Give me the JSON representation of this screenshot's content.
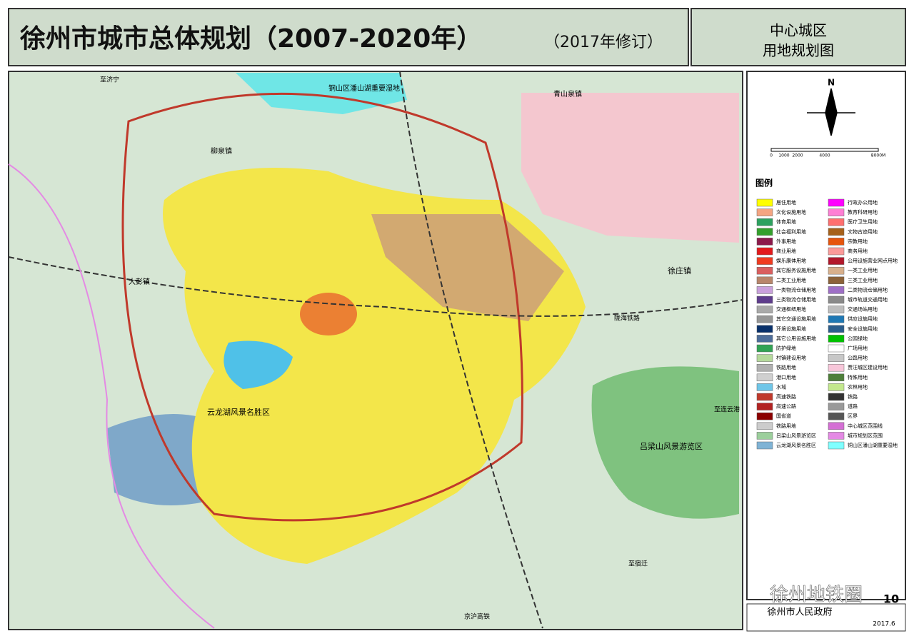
{
  "header": {
    "title": "徐州市城市总体规划（2007-2020年）",
    "subtitle": "（2017年修订）"
  },
  "side_title": [
    "中心城区",
    "用地规划图"
  ],
  "north": "N",
  "scale": [
    "0",
    "1000",
    "2000",
    "4000",
    "8000M"
  ],
  "legend": {
    "title": "图例",
    "items": [
      {
        "label": "居住用地",
        "color": "#ffff00"
      },
      {
        "label": "行政办公用地",
        "color": "#ff00ff"
      },
      {
        "label": "文化设施用地",
        "color": "#f4a582"
      },
      {
        "label": "教育科研用地",
        "color": "#ff7fd4"
      },
      {
        "label": "体育用地",
        "color": "#2ca25f"
      },
      {
        "label": "医疗卫生用地",
        "color": "#ff6f6f"
      },
      {
        "label": "社会福利用地",
        "color": "#33a02c"
      },
      {
        "label": "文物古迹用地",
        "color": "#a6611a"
      },
      {
        "label": "外事用地",
        "color": "#8c1a4b"
      },
      {
        "label": "宗教用地",
        "color": "#e6550d"
      },
      {
        "label": "商业用地",
        "color": "#e31a1c"
      },
      {
        "label": "商务用地",
        "color": "#fb9a99"
      },
      {
        "label": "娱乐康体用地",
        "color": "#f03b20"
      },
      {
        "label": "公用设施营业网点用地",
        "color": "#b2182b"
      },
      {
        "label": "其它服务设施用地",
        "color": "#d95f5f"
      },
      {
        "label": "一类工业用地",
        "color": "#d8b08c"
      },
      {
        "label": "二类工业用地",
        "color": "#b8866b"
      },
      {
        "label": "三类工业用地",
        "color": "#8c6239"
      },
      {
        "label": "一类物流仓储用地",
        "color": "#c9a0dc"
      },
      {
        "label": "二类物流仓储用地",
        "color": "#9e6fc6"
      },
      {
        "label": "三类物流仓储用地",
        "color": "#5e3c8c"
      },
      {
        "label": "城市轨道交通用地",
        "color": "#8a8a8a"
      },
      {
        "label": "交通枢纽用地",
        "color": "#a9a9a9"
      },
      {
        "label": "交通场站用地",
        "color": "#bdbdbd"
      },
      {
        "label": "其它交通设施用地",
        "color": "#969696"
      },
      {
        "label": "供应设施用地",
        "color": "#1f78b4"
      },
      {
        "label": "环境设施用地",
        "color": "#08306b"
      },
      {
        "label": "安全设施用地",
        "color": "#2b5d8c"
      },
      {
        "label": "其它公用设施用地",
        "color": "#4d6d9a"
      },
      {
        "label": "公园绿地",
        "color": "#00c000"
      },
      {
        "label": "防护绿地",
        "color": "#31a354"
      },
      {
        "label": "广场用地",
        "color": "#ffffff"
      },
      {
        "label": "村镇建设用地",
        "color": "#b5d99c"
      },
      {
        "label": "公路用地",
        "color": "#c7c7c7"
      },
      {
        "label": "铁路用地",
        "color": "#b0b0b0"
      },
      {
        "label": "贾汪城区建设用地",
        "color": "#f7c6d9"
      },
      {
        "label": "港口用地",
        "color": "#d0d0d0"
      },
      {
        "label": "特殊用地",
        "color": "#4e7f3a"
      },
      {
        "label": "水域",
        "color": "#6fc6e8"
      },
      {
        "label": "农林用地",
        "color": "#c3e88d"
      },
      {
        "label": "高速铁路",
        "color": "#c0392b"
      },
      {
        "label": "铁路",
        "color": "#333333"
      },
      {
        "label": "高速公路",
        "color": "#b22222"
      },
      {
        "label": "道路",
        "color": "#999999"
      },
      {
        "label": "国省道",
        "color": "#8b0000"
      },
      {
        "label": "区界",
        "color": "#555555"
      },
      {
        "label": "铁路用地",
        "color": "#cccccc"
      },
      {
        "label": "中心城区范围线",
        "color": "#d46fd4"
      },
      {
        "label": "吕梁山风景游览区",
        "color": "#9ccf9c"
      },
      {
        "label": "城市规划区范围",
        "color": "#e48ae4"
      },
      {
        "label": "云龙湖风景名胜区",
        "color": "#7fb3d5"
      },
      {
        "label": "铜山区潘山湖重要湿地",
        "color": "#7fffff"
      }
    ]
  },
  "map_labels": [
    "云龙湖风景名胜区",
    "吕梁山风景游览区",
    "徐庄镇",
    "青山泉镇",
    "柳泉镇",
    "大彭镇",
    "陇海铁路",
    "至济宁",
    "至连云港",
    "至宿迁",
    "京沪高铁",
    "铜山区潘山湖重要湿地"
  ],
  "footer": {
    "watermark": "徐州地铁圈",
    "org": "徐州市人民政府",
    "date": "2017.6",
    "page": "10"
  }
}
